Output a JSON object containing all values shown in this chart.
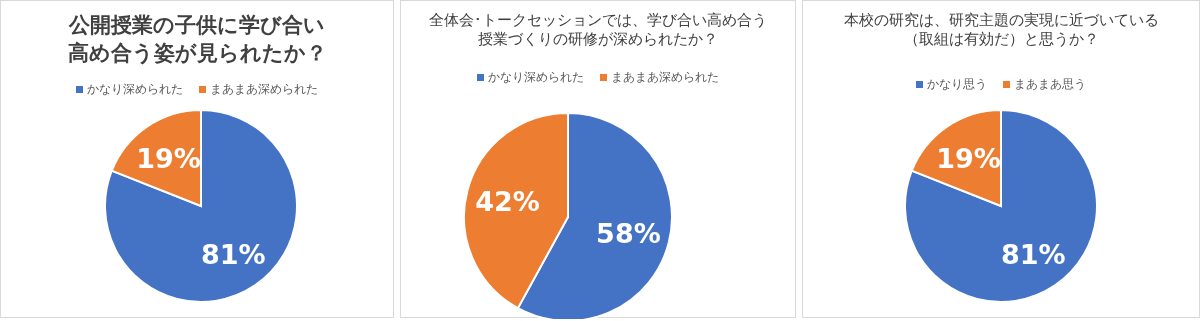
{
  "chart_data": [
    {
      "type": "pie",
      "title": "公開授業の子供に学び合い高め合う姿が見られたか？",
      "categories": [
        "かなり深められた",
        "まあまあ深められた"
      ],
      "values": [
        81,
        19
      ],
      "colors": [
        "#4472c4",
        "#ed7d31"
      ],
      "value_labels": [
        "81%",
        "19%"
      ],
      "legend": "top"
    },
    {
      "type": "pie",
      "title": "全体会･トークセッションでは、学び合い高め合う授業づくりの研修が深められたか？",
      "categories": [
        "かなり深められた",
        "まあまあ深められた"
      ],
      "values": [
        58,
        42
      ],
      "colors": [
        "#4472c4",
        "#ed7d31"
      ],
      "value_labels": [
        "58%",
        "42%"
      ],
      "legend": "top"
    },
    {
      "type": "pie",
      "title": "本校の研究は、研究主題の実現に近づいている（取組は有効だ）と思うか？",
      "categories": [
        "かなり思う",
        "まあまあ思う"
      ],
      "values": [
        81,
        19
      ],
      "colors": [
        "#4472c4",
        "#ed7d31"
      ],
      "value_labels": [
        "81%",
        "19%"
      ],
      "legend": "top"
    }
  ]
}
